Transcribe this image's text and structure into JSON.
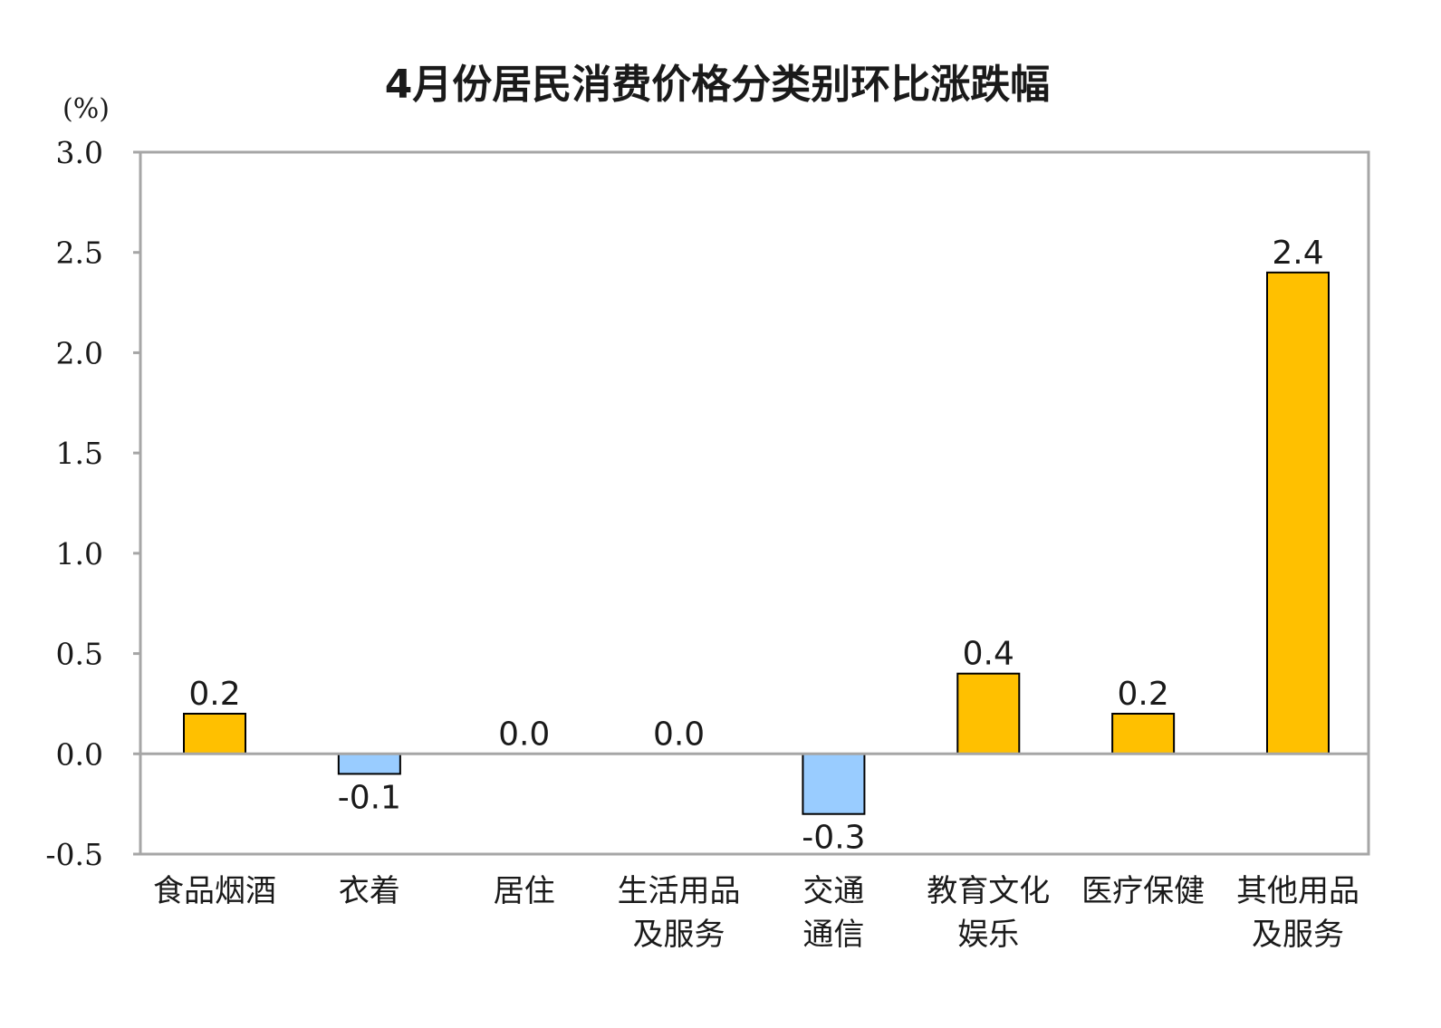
{
  "chart_data": {
    "type": "bar",
    "title": "4月份居民消费价格分类别环比涨跌幅",
    "ylabel": "(%)",
    "xlabel": "",
    "ylim": [
      -0.5,
      3.0
    ],
    "yticks": [
      "3.0",
      "2.5",
      "2.0",
      "1.5",
      "1.0",
      "0.5",
      "0.0",
      "-0.5"
    ],
    "categories": [
      [
        "食品烟酒"
      ],
      [
        "衣着"
      ],
      [
        "居住"
      ],
      [
        "生活用品",
        "及服务"
      ],
      [
        "交通",
        "通信"
      ],
      [
        "教育文化",
        "娱乐"
      ],
      [
        "医疗保健"
      ],
      [
        "其他用品",
        "及服务"
      ]
    ],
    "values": [
      0.2,
      -0.1,
      0.0,
      0.0,
      -0.3,
      0.4,
      0.2,
      2.4
    ],
    "value_labels": [
      "0.2",
      "-0.1",
      "0.0",
      "0.0",
      "-0.3",
      "0.4",
      "0.2",
      "2.4"
    ],
    "grid": false,
    "legend": "none",
    "colors": {
      "positive": "#FFC000",
      "negative": "#99CCFF",
      "frame": "#A6A6A6",
      "bar_stroke": "#000000"
    }
  }
}
